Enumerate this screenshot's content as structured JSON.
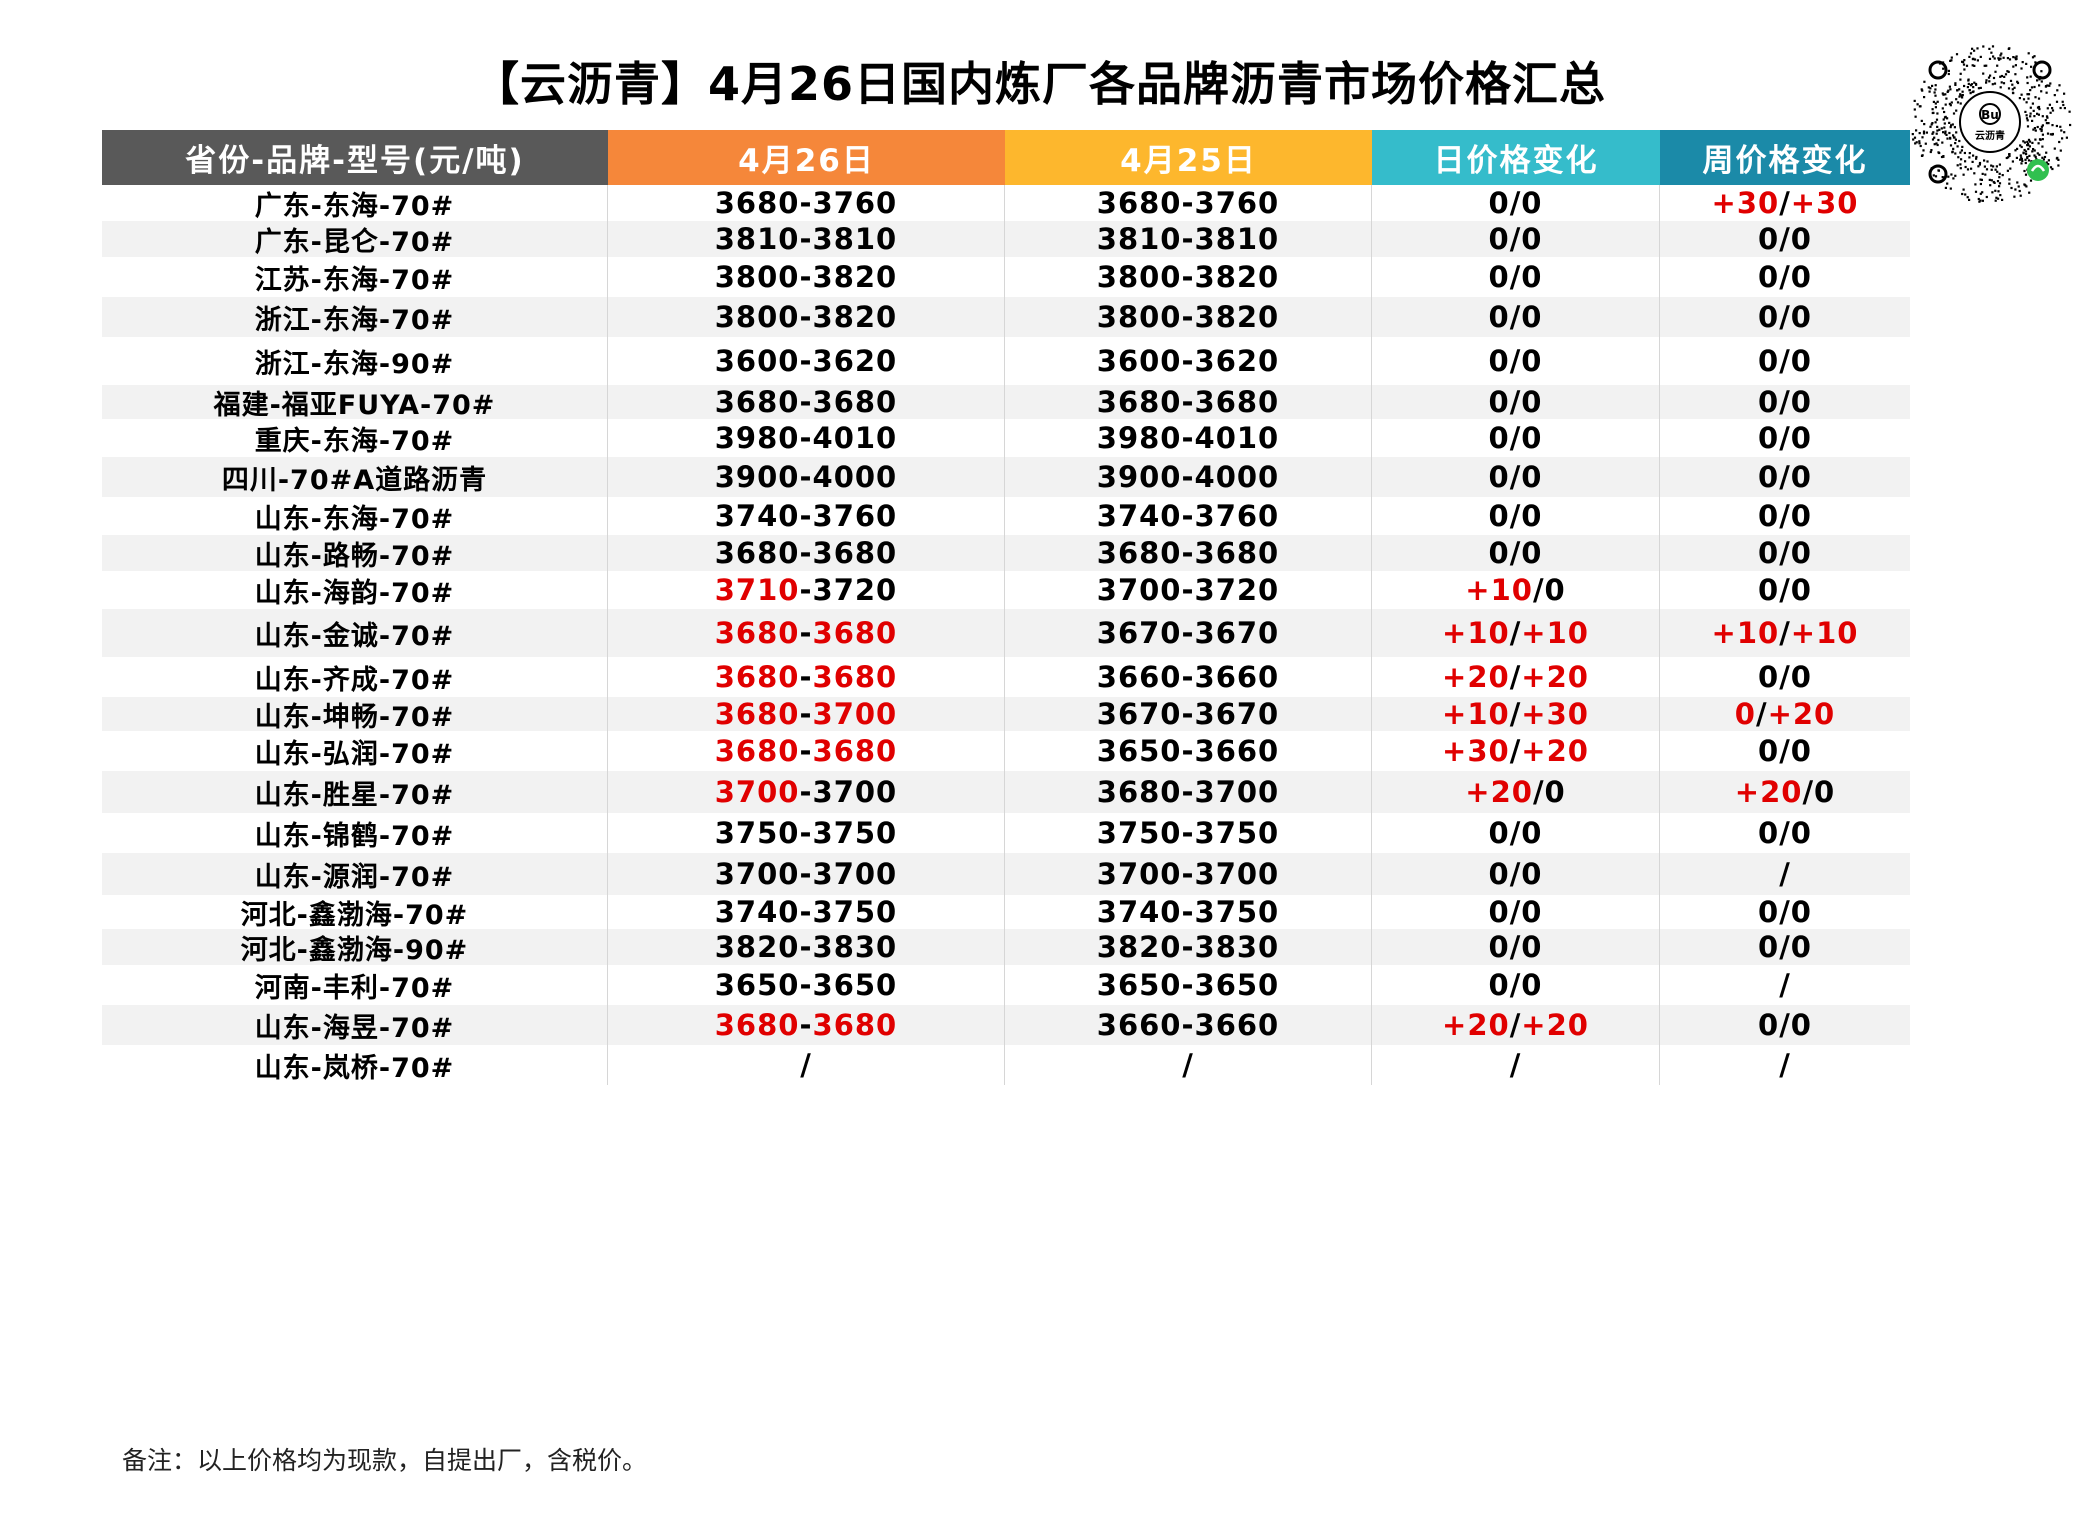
{
  "title": "【云沥青】4月26日国内炼厂各品牌沥青市场价格汇总",
  "logo_text": "云沥青",
  "colors": {
    "header_col0": "#595959",
    "header_col1": "#f5873a",
    "header_col2": "#fdb72d",
    "header_col3": "#35bccb",
    "header_col4": "#1b8aa8",
    "change_red": "#e00000",
    "row_alt": "#f2f2f2"
  },
  "headers": [
    "省份-品牌-型号(元/吨)",
    "4月26日",
    "4月25日",
    "日价格变化",
    "周价格变化"
  ],
  "rows": [
    {
      "brand": "广东-东海-70#",
      "d26a": "3680",
      "d26b": "3760",
      "d25": "3680-3760",
      "day_a": "0",
      "day_b": "0",
      "week_a": "+30",
      "week_b": "+30",
      "r26a": false,
      "r26b": false,
      "rda": false,
      "rdb": false,
      "rwa": true,
      "rwb": true
    },
    {
      "brand": "广东-昆仑-70#",
      "d26a": "3810",
      "d26b": "3810",
      "d25": "3810-3810",
      "day_a": "0",
      "day_b": "0",
      "week_a": "0",
      "week_b": "0",
      "r26a": false,
      "r26b": false,
      "rda": false,
      "rdb": false,
      "rwa": false,
      "rwb": false
    },
    {
      "brand": "江苏-东海-70#",
      "d26a": "3800",
      "d26b": "3820",
      "d25": "3800-3820",
      "day_a": "0",
      "day_b": "0",
      "week_a": "0",
      "week_b": "0",
      "r26a": false,
      "r26b": false,
      "rda": false,
      "rdb": false,
      "rwa": false,
      "rwb": false
    },
    {
      "brand": "浙江-东海-70#",
      "d26a": "3800",
      "d26b": "3820",
      "d25": "3800-3820",
      "day_a": "0",
      "day_b": "0",
      "week_a": "0",
      "week_b": "0",
      "r26a": false,
      "r26b": false,
      "rda": false,
      "rdb": false,
      "rwa": false,
      "rwb": false
    },
    {
      "brand": "浙江-东海-90#",
      "d26a": "3600",
      "d26b": "3620",
      "d25": "3600-3620",
      "day_a": "0",
      "day_b": "0",
      "week_a": "0",
      "week_b": "0",
      "r26a": false,
      "r26b": false,
      "rda": false,
      "rdb": false,
      "rwa": false,
      "rwb": false
    },
    {
      "brand": "福建-福亚FUYA-70#",
      "d26a": "3680",
      "d26b": "3680",
      "d25": "3680-3680",
      "day_a": "0",
      "day_b": "0",
      "week_a": "0",
      "week_b": "0",
      "r26a": false,
      "r26b": false,
      "rda": false,
      "rdb": false,
      "rwa": false,
      "rwb": false
    },
    {
      "brand": "重庆-东海-70#",
      "d26a": "3980",
      "d26b": "4010",
      "d25": "3980-4010",
      "day_a": "0",
      "day_b": "0",
      "week_a": "0",
      "week_b": "0",
      "r26a": false,
      "r26b": false,
      "rda": false,
      "rdb": false,
      "rwa": false,
      "rwb": false
    },
    {
      "brand": "四川-70#A道路沥青",
      "d26a": "3900",
      "d26b": "4000",
      "d25": "3900-4000",
      "day_a": "0",
      "day_b": "0",
      "week_a": "0",
      "week_b": "0",
      "r26a": false,
      "r26b": false,
      "rda": false,
      "rdb": false,
      "rwa": false,
      "rwb": false
    },
    {
      "brand": "山东-东海-70#",
      "d26a": "3740",
      "d26b": "3760",
      "d25": "3740-3760",
      "day_a": "0",
      "day_b": "0",
      "week_a": "0",
      "week_b": "0",
      "r26a": false,
      "r26b": false,
      "rda": false,
      "rdb": false,
      "rwa": false,
      "rwb": false
    },
    {
      "brand": "山东-路畅-70#",
      "d26a": "3680",
      "d26b": "3680",
      "d25": "3680-3680",
      "day_a": "0",
      "day_b": "0",
      "week_a": "0",
      "week_b": "0",
      "r26a": false,
      "r26b": false,
      "rda": false,
      "rdb": false,
      "rwa": false,
      "rwb": false
    },
    {
      "brand": "山东-海韵-70#",
      "d26a": "3710",
      "d26b": "3720",
      "d25": "3700-3720",
      "day_a": "+10",
      "day_b": "0",
      "week_a": "0",
      "week_b": "0",
      "r26a": true,
      "r26b": false,
      "rda": true,
      "rdb": false,
      "rwa": false,
      "rwb": false
    },
    {
      "brand": "山东-金诚-70#",
      "d26a": "3680",
      "d26b": "3680",
      "d25": "3670-3670",
      "day_a": "+10",
      "day_b": "+10",
      "week_a": "+10",
      "week_b": "+10",
      "r26a": true,
      "r26b": true,
      "rda": true,
      "rdb": true,
      "rwa": true,
      "rwb": true
    },
    {
      "brand": "山东-齐成-70#",
      "d26a": "3680",
      "d26b": "3680",
      "d25": "3660-3660",
      "day_a": "+20",
      "day_b": "+20",
      "week_a": "0",
      "week_b": "0",
      "r26a": true,
      "r26b": true,
      "rda": true,
      "rdb": true,
      "rwa": false,
      "rwb": false
    },
    {
      "brand": "山东-坤畅-70#",
      "d26a": "3680",
      "d26b": "3700",
      "d25": "3670-3670",
      "day_a": "+10",
      "day_b": "+30",
      "week_a": "0",
      "week_b": "+20",
      "r26a": true,
      "r26b": true,
      "rda": true,
      "rdb": true,
      "rwa": true,
      "rwb": true
    },
    {
      "brand": "山东-弘润-70#",
      "d26a": "3680",
      "d26b": "3680",
      "d25": "3650-3660",
      "day_a": "+30",
      "day_b": "+20",
      "week_a": "0",
      "week_b": "0",
      "r26a": true,
      "r26b": true,
      "rda": true,
      "rdb": true,
      "rwa": false,
      "rwb": false
    },
    {
      "brand": "山东-胜星-70#",
      "d26a": "3700",
      "d26b": "3700",
      "d25": "3680-3700",
      "day_a": "+20",
      "day_b": "0",
      "week_a": "+20",
      "week_b": "0",
      "r26a": true,
      "r26b": false,
      "rda": true,
      "rdb": false,
      "rwa": true,
      "rwb": false
    },
    {
      "brand": "山东-锦鹤-70#",
      "d26a": "3750",
      "d26b": "3750",
      "d25": "3750-3750",
      "day_a": "0",
      "day_b": "0",
      "week_a": "0",
      "week_b": "0",
      "r26a": false,
      "r26b": false,
      "rda": false,
      "rdb": false,
      "rwa": false,
      "rwb": false
    },
    {
      "brand": "山东-源润-70#",
      "d26a": "3700",
      "d26b": "3700",
      "d25": "3700-3700",
      "day_a": "0",
      "day_b": "0",
      "week_single": "/",
      "r26a": false,
      "r26b": false,
      "rda": false,
      "rdb": false
    },
    {
      "brand": "河北-鑫渤海-70#",
      "d26a": "3740",
      "d26b": "3750",
      "d25": "3740-3750",
      "day_a": "0",
      "day_b": "0",
      "week_a": "0",
      "week_b": "0",
      "r26a": false,
      "r26b": false,
      "rda": false,
      "rdb": false,
      "rwa": false,
      "rwb": false
    },
    {
      "brand": "河北-鑫渤海-90#",
      "d26a": "3820",
      "d26b": "3830",
      "d25": "3820-3830",
      "day_a": "0",
      "day_b": "0",
      "week_a": "0",
      "week_b": "0",
      "r26a": false,
      "r26b": false,
      "rda": false,
      "rdb": false,
      "rwa": false,
      "rwb": false
    },
    {
      "brand": "河南-丰利-70#",
      "d26a": "3650",
      "d26b": "3650",
      "d25": "3650-3650",
      "day_a": "0",
      "day_b": "0",
      "week_single": "/",
      "r26a": false,
      "r26b": false,
      "rda": false,
      "rdb": false
    },
    {
      "brand": "山东-海昱-70#",
      "d26a": "3680",
      "d26b": "3680",
      "d25": "3660-3660",
      "day_a": "+20",
      "day_b": "+20",
      "week_a": "0",
      "week_b": "0",
      "r26a": true,
      "r26b": true,
      "rda": true,
      "rdb": true,
      "rwa": false,
      "rwb": false
    },
    {
      "brand": "山东-岚桥-70#",
      "d26_single": "/",
      "d25": "/",
      "day_single": "/",
      "week_single": "/"
    }
  ],
  "note": "备注：以上价格均为现款，自提出厂，含税价。"
}
